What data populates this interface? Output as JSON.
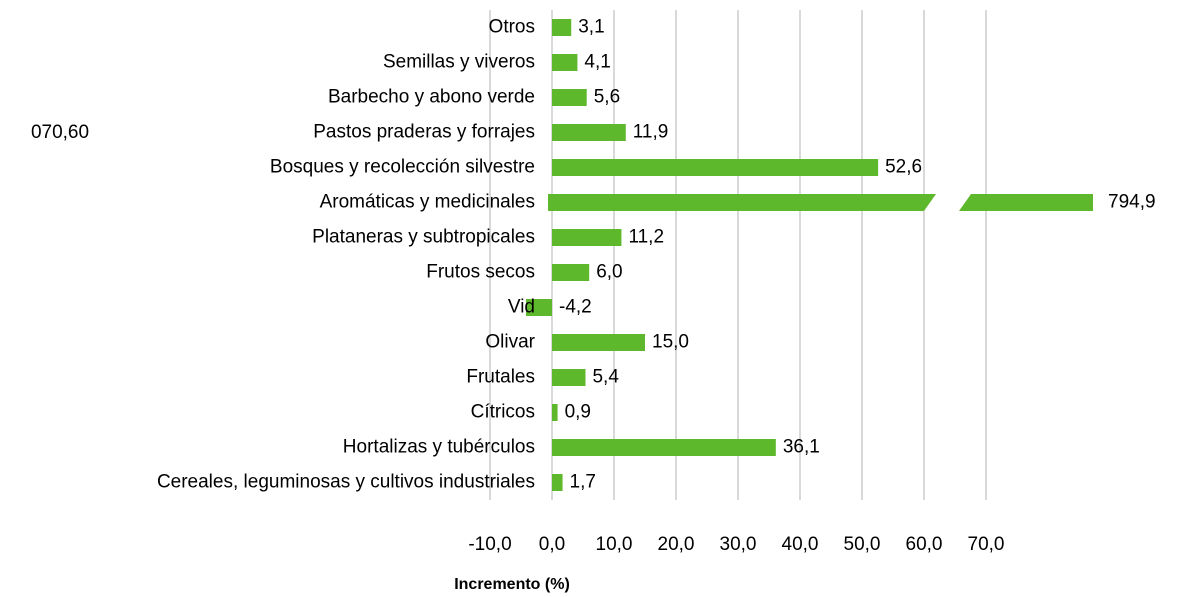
{
  "chart_data": {
    "type": "barh",
    "categories": [
      "Cereales, leguminosas y cultivos industriales",
      "Hortalizas y tubérculos",
      "Cítricos",
      "Frutales",
      "Olivar",
      "Vid",
      "Frutos secos",
      "Plataneras y subtropicales",
      "Aromáticas y medicinales",
      "Bosques y recolección silvestre",
      "Pastos praderas y forrajes",
      "Barbecho y abono verde",
      "Semillas y viveros",
      "Otros"
    ],
    "values": [
      1.7,
      36.1,
      0.9,
      5.4,
      15.0,
      -4.2,
      6.0,
      11.2,
      794.9,
      52.6,
      11.9,
      5.6,
      4.1,
      3.1
    ],
    "value_labels": [
      "1,7",
      "36,1",
      "0,9",
      "5,4",
      "15,0",
      "-4,2",
      "6,0",
      "11,2",
      "794,9",
      "52,6",
      "11,9",
      "5,6",
      "4,1",
      "3,1"
    ],
    "color": "#5eb82b",
    "xlabel": "Incremento (%)",
    "annotation": "070,60",
    "xlim": [
      -10,
      70
    ],
    "xticks": [
      {
        "value": -10,
        "label": "-10,0"
      },
      {
        "value": 0,
        "label": "0,0"
      },
      {
        "value": 10,
        "label": "10,0"
      },
      {
        "value": 20,
        "label": "20,0"
      },
      {
        "value": 30,
        "label": "30,0"
      },
      {
        "value": 40,
        "label": "40,0"
      },
      {
        "value": 50,
        "label": "50,0"
      },
      {
        "value": 60,
        "label": "60,0"
      },
      {
        "value": 70,
        "label": "70,0"
      }
    ],
    "grid": true
  }
}
